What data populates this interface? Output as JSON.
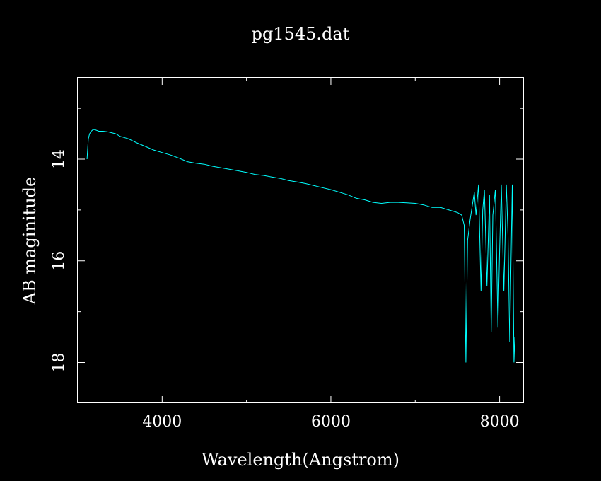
{
  "chart_data": {
    "type": "line",
    "title": "pg1545.dat",
    "xlabel": "Wavelength(Angstrom)",
    "ylabel": "AB maginitude",
    "xlim": [
      3000,
      8280
    ],
    "ylim": [
      18.8,
      12.4
    ],
    "y_inverted": true,
    "x_major_ticks": [
      4000,
      6000,
      8000
    ],
    "x_minor_ticks": [
      5000,
      7000
    ],
    "y_major_ticks": [
      14,
      16,
      18
    ],
    "y_minor_ticks": [
      13,
      15,
      17
    ],
    "x_tick_labels": [
      "4000",
      "6000",
      "8000"
    ],
    "y_tick_labels": [
      "14",
      "16",
      "18"
    ],
    "grid": false,
    "line_color": "#00ffff",
    "axis_color": "#ffffff",
    "background": "#000000",
    "series": [
      {
        "x": [
          3110,
          3125,
          3140,
          3160,
          3180,
          3200,
          3250,
          3300,
          3350,
          3400,
          3450,
          3500,
          3600,
          3700,
          3800,
          3900,
          4000,
          4100,
          4200,
          4300,
          4400,
          4500,
          4600,
          4700,
          4800,
          4900,
          5000,
          5100,
          5200,
          5300,
          5400,
          5500,
          5600,
          5700,
          5800,
          5900,
          6000,
          6100,
          6200,
          6300,
          6400,
          6500,
          6600,
          6700,
          6800,
          6900,
          7000,
          7100,
          7200,
          7300,
          7400,
          7500,
          7550,
          7580,
          7600,
          7620,
          7650,
          7700,
          7720,
          7750,
          7780,
          7800,
          7820,
          7850,
          7880,
          7900,
          7920,
          7950,
          7980,
          8000,
          8020,
          8050,
          8080,
          8100,
          8120,
          8150,
          8170,
          8180
        ],
        "y": [
          14.0,
          13.6,
          13.5,
          13.45,
          13.42,
          13.42,
          13.45,
          13.45,
          13.46,
          13.48,
          13.5,
          13.55,
          13.6,
          13.68,
          13.75,
          13.82,
          13.87,
          13.92,
          13.98,
          14.05,
          14.08,
          14.1,
          14.14,
          14.17,
          14.2,
          14.23,
          14.26,
          14.3,
          14.32,
          14.35,
          14.38,
          14.42,
          14.45,
          14.48,
          14.52,
          14.56,
          14.6,
          14.65,
          14.7,
          14.77,
          14.8,
          14.85,
          14.87,
          14.85,
          14.85,
          14.86,
          14.87,
          14.9,
          14.95,
          14.95,
          15.0,
          15.05,
          15.1,
          15.3,
          18.0,
          15.6,
          15.2,
          14.65,
          15.1,
          14.5,
          16.6,
          15.0,
          14.6,
          16.5,
          14.7,
          17.4,
          15.1,
          14.6,
          17.3,
          15.8,
          14.5,
          16.6,
          14.5,
          15.5,
          17.6,
          14.5,
          18.0,
          17.5
        ]
      }
    ]
  }
}
